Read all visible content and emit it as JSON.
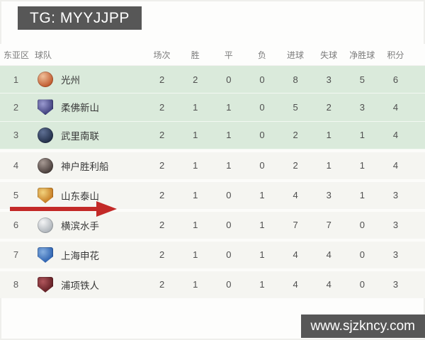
{
  "watermarks": {
    "top": "TG: MYYJJPP",
    "bottom": "www.sjzkncy.com"
  },
  "table": {
    "headers": [
      "东亚区",
      "球队",
      "场次",
      "胜",
      "平",
      "负",
      "进球",
      "失球",
      "净胜球",
      "积分"
    ],
    "rows": [
      {
        "rank": 1,
        "team": "光州",
        "played": 2,
        "won": 2,
        "drawn": 0,
        "lost": 0,
        "goals_for": 8,
        "goals_against": 3,
        "goal_diff": 5,
        "points": 6,
        "qualification_zone": true,
        "crest": {
          "icon": "gwangju-crest-icon",
          "shape": "circle",
          "color": "#c05a2e",
          "color2": "#f0c09a"
        }
      },
      {
        "rank": 2,
        "team": "柔佛新山",
        "played": 2,
        "won": 1,
        "drawn": 1,
        "lost": 0,
        "goals_for": 5,
        "goals_against": 2,
        "goal_diff": 3,
        "points": 4,
        "qualification_zone": true,
        "crest": {
          "icon": "johor-crest-icon",
          "shape": "shield",
          "color": "#3d3d7a",
          "color2": "#9a9ad0"
        }
      },
      {
        "rank": 3,
        "team": "武里南联",
        "played": 2,
        "won": 1,
        "drawn": 1,
        "lost": 0,
        "goals_for": 2,
        "goals_against": 1,
        "goal_diff": 1,
        "points": 4,
        "qualification_zone": true,
        "crest": {
          "icon": "buriram-crest-icon",
          "shape": "circle",
          "color": "#23304a",
          "color2": "#5f7094"
        }
      },
      {
        "rank": 4,
        "team": "神户胜利船",
        "played": 2,
        "won": 1,
        "drawn": 1,
        "lost": 0,
        "goals_for": 2,
        "goals_against": 1,
        "goal_diff": 1,
        "points": 4,
        "qualification_zone": false,
        "crest": {
          "icon": "vissel-kobe-crest-icon",
          "shape": "circle",
          "color": "#4a3f3c",
          "color2": "#a79a94"
        }
      },
      {
        "rank": 5,
        "team": "山东泰山",
        "played": 2,
        "won": 1,
        "drawn": 0,
        "lost": 1,
        "goals_for": 4,
        "goals_against": 3,
        "goal_diff": 1,
        "points": 3,
        "qualification_zone": false,
        "crest": {
          "icon": "shandong-taishan-crest-icon",
          "shape": "shield",
          "color": "#c4781e",
          "color2": "#f2d37e"
        }
      },
      {
        "rank": 6,
        "team": "横滨水手",
        "played": 2,
        "won": 1,
        "drawn": 0,
        "lost": 1,
        "goals_for": 7,
        "goals_against": 7,
        "goal_diff": 0,
        "points": 3,
        "qualification_zone": false,
        "crest": {
          "icon": "yokohama-marinos-crest-icon",
          "shape": "circle",
          "color": "#aeb4ba",
          "color2": "#f3f4f5"
        }
      },
      {
        "rank": 7,
        "team": "上海申花",
        "played": 2,
        "won": 1,
        "drawn": 0,
        "lost": 1,
        "goals_for": 4,
        "goals_against": 4,
        "goal_diff": 0,
        "points": 3,
        "qualification_zone": false,
        "crest": {
          "icon": "shanghai-shenhua-crest-icon",
          "shape": "shield",
          "color": "#2a5fae",
          "color2": "#86afe0"
        }
      },
      {
        "rank": 8,
        "team": "浦项铁人",
        "played": 2,
        "won": 1,
        "drawn": 0,
        "lost": 1,
        "goals_for": 4,
        "goals_against": 4,
        "goal_diff": 0,
        "points": 3,
        "qualification_zone": false,
        "crest": {
          "icon": "pohang-steelers-crest-icon",
          "shape": "shield",
          "color": "#5f1d22",
          "color2": "#b0565c"
        }
      }
    ]
  },
  "colors": {
    "qualification_row_bg": "#daeadb",
    "row_bg": "#f5f5f1",
    "badge_bg": "#575757",
    "badge_text": "#ffffff",
    "arrow": "#c32a28",
    "header_text": "#7c7c7c",
    "body_text": "#4f4f4f"
  }
}
